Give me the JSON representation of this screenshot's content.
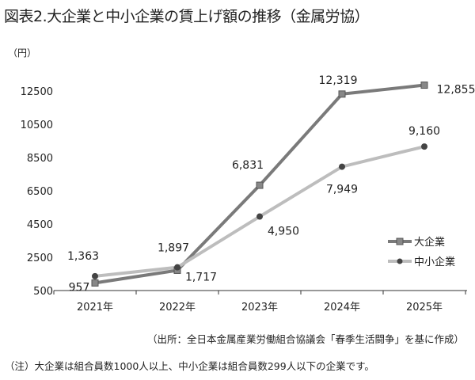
{
  "title": "図表2.大企業と中小企業の賃上げ額の推移（金属労協）",
  "source": "（出所：全日本金属産業労働組合協議会「春季生活闘争」を基に作成）",
  "note": "（注）大企業は組合員数1000人以上、中小企業は組合員数299人以下の企業です。",
  "chart_data": {
    "type": "line",
    "title": "図表2.大企業と中小企業の賃上げ額の推移（金属労協）",
    "ylabel": "（円）",
    "categories": [
      "2021年",
      "2022年",
      "2023年",
      "2024年",
      "2025年"
    ],
    "ylim": [
      500,
      12500
    ],
    "yticks": [
      500,
      2500,
      4500,
      6500,
      8500,
      10500,
      12500
    ],
    "grid": false,
    "legend_position": "right",
    "series": [
      {
        "name": "大企業",
        "values": [
          957,
          1717,
          6831,
          12319,
          12855
        ],
        "labels": [
          "957",
          "1,717",
          "6,831",
          "12,319",
          "12,855"
        ],
        "color": "#7a7a7a",
        "marker": "square"
      },
      {
        "name": "中小企業",
        "values": [
          1363,
          1897,
          4950,
          7949,
          9160
        ],
        "labels": [
          "1,363",
          "1,897",
          "4,950",
          "7,949",
          "9,160"
        ],
        "color": "#bdbdbd",
        "marker": "circle"
      }
    ]
  }
}
